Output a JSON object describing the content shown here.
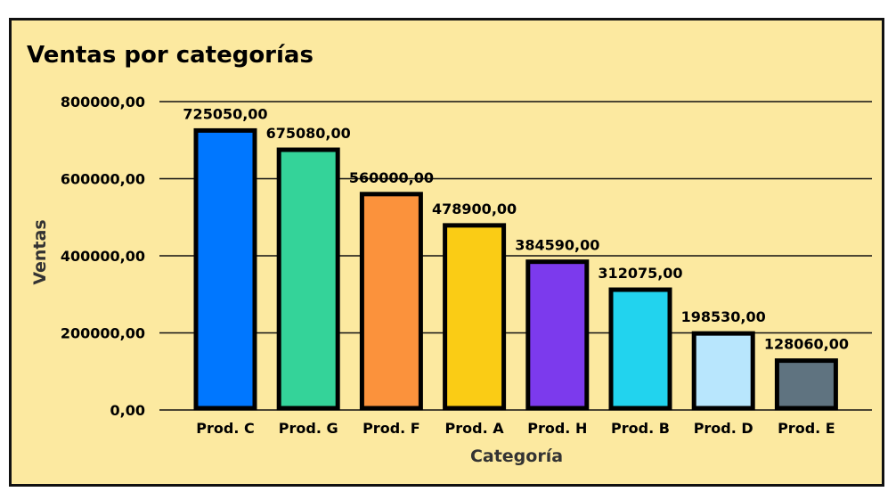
{
  "chart_data": {
    "type": "bar",
    "title": "Ventas por categorías",
    "xlabel": "Categoría",
    "ylabel": "Ventas",
    "categories": [
      "Prod. C",
      "Prod. G",
      "Prod. F",
      "Prod. A",
      "Prod. H",
      "Prod. B",
      "Prod. D",
      "Prod. E"
    ],
    "values": [
      725050,
      675080,
      560000,
      478900,
      384590,
      312075,
      198530,
      128060
    ],
    "data_labels": [
      "725050,00",
      "675080,00",
      "560000,00",
      "478900,00",
      "384590,00",
      "312075,00",
      "198530,00",
      "128060,00"
    ],
    "colors": [
      "#0077ff",
      "#34d399",
      "#fb923c",
      "#facc15",
      "#7c3aed",
      "#22d3ee",
      "#b8e6fd",
      "#5f7380"
    ],
    "ylim": [
      0,
      800000
    ],
    "yticks": [
      0,
      200000,
      400000,
      600000,
      800000
    ],
    "ytick_labels": [
      "0,00",
      "200000,00",
      "400000,00",
      "600000,00",
      "800000,00"
    ],
    "grid": true,
    "background": "#fce9a0"
  }
}
